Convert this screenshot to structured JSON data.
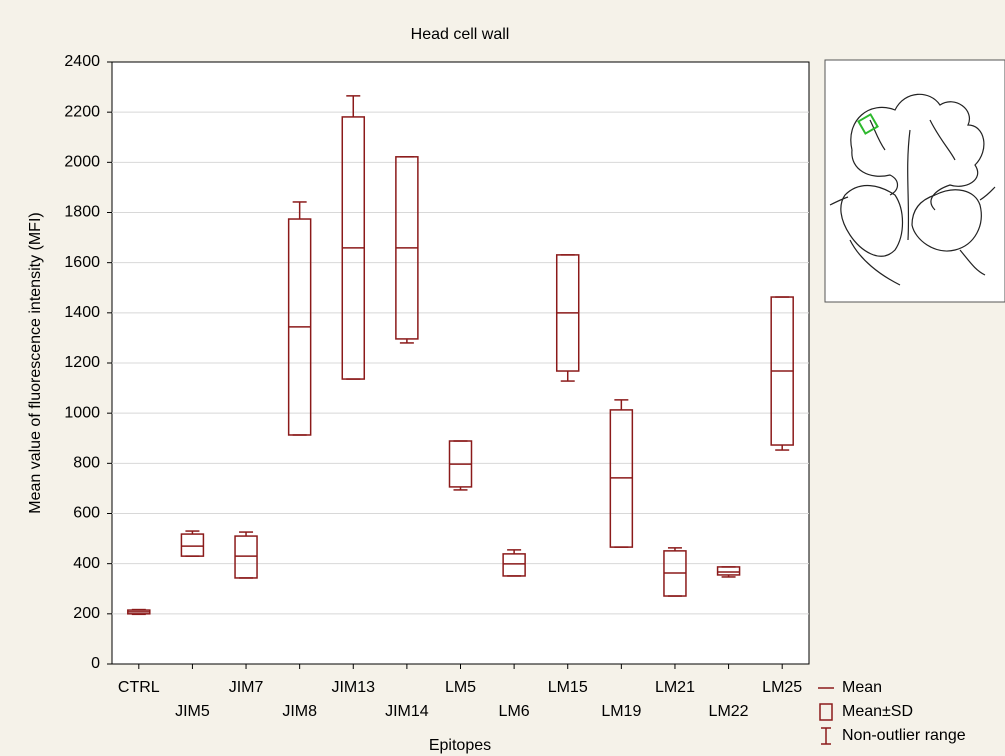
{
  "chart_data": {
    "type": "box",
    "title": "Head cell wall",
    "x_label": "Epitopes",
    "y_label": "Mean value of fluorescence intensity (MFI)",
    "categories": [
      "CTRL",
      "JIM5",
      "JIM7",
      "JIM8",
      "JIM13",
      "JIM14",
      "LM5",
      "LM6",
      "LM15",
      "LM19",
      "LM21",
      "LM22",
      "LM25"
    ],
    "mean": [
      208,
      470,
      430,
      1344,
      1659,
      1659,
      797,
      399,
      1400,
      742,
      363,
      367,
      1168
    ],
    "sd_low": [
      200,
      430,
      343,
      913,
      1136,
      1296,
      706,
      351,
      1168,
      466,
      271,
      355,
      873
    ],
    "sd_high": [
      215,
      518,
      510,
      1774,
      2181,
      2022,
      889,
      439,
      1631,
      1013,
      451,
      387,
      1463
    ],
    "min": [
      198,
      430,
      343,
      913,
      1136,
      1280,
      694,
      351,
      1128,
      466,
      271,
      347,
      853
    ],
    "max": [
      217,
      530,
      526,
      1842,
      2265,
      2022,
      889,
      455,
      1631,
      1053,
      463,
      387,
      1463
    ],
    "color": "#8b1a1a",
    "ylim": [
      0,
      2400
    ],
    "yticks": [
      0,
      200,
      400,
      600,
      800,
      1000,
      1200,
      1400,
      1600,
      1800,
      2000,
      2200,
      2400
    ],
    "grid": true,
    "legend": {
      "mean": "Mean",
      "sd": "Mean±SD",
      "range": "Non-outlier range"
    }
  }
}
